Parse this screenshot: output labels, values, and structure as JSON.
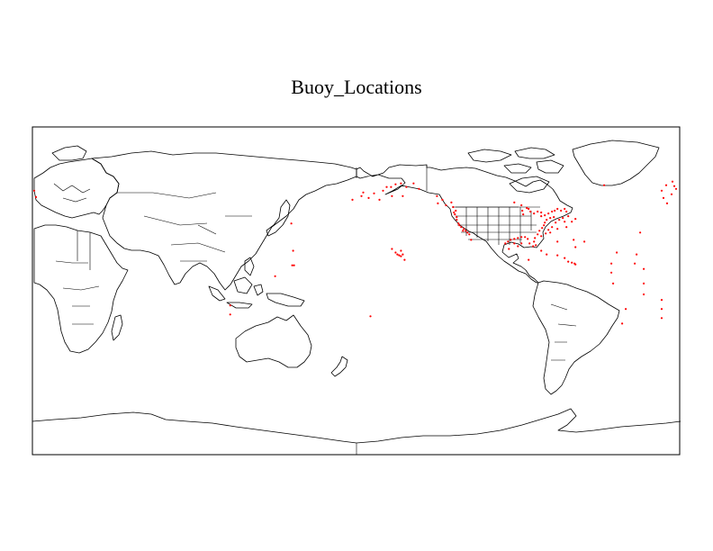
{
  "title": "Buoy_Locations",
  "map": {
    "projection": "cylindrical-equidistant",
    "center_longitude": 180,
    "lon_range": [
      0,
      360
    ],
    "lat_range": [
      -90,
      90
    ],
    "outline_color": "#000000",
    "marker_color": "#ff0000",
    "marker_shape": "dot"
  },
  "buoys": [
    {
      "lon": 356.0,
      "lat": 60.0
    },
    {
      "lon": 357.0,
      "lat": 57.5
    },
    {
      "lon": 358.0,
      "lat": 56.0
    },
    {
      "lon": 1.0,
      "lat": 55.0
    },
    {
      "lon": 2.0,
      "lat": 51.5
    },
    {
      "lon": 355.5,
      "lat": 53.0
    },
    {
      "lon": 352.5,
      "lat": 58.0
    },
    {
      "lon": 350.0,
      "lat": 55.0
    },
    {
      "lon": 351.0,
      "lat": 51.0
    },
    {
      "lon": 353.0,
      "lat": 48.0
    },
    {
      "lon": 338.0,
      "lat": 32.0
    },
    {
      "lon": 336.0,
      "lat": 20.0
    },
    {
      "lon": 335.0,
      "lat": 15.0
    },
    {
      "lon": 325.0,
      "lat": 21.0
    },
    {
      "lon": 322.0,
      "lat": 15.0
    },
    {
      "lon": 322.0,
      "lat": 10.0
    },
    {
      "lon": 323.0,
      "lat": 4.0
    },
    {
      "lon": 340.0,
      "lat": 12.0
    },
    {
      "lon": 340.0,
      "lat": 4.0
    },
    {
      "lon": 340.0,
      "lat": -2.0
    },
    {
      "lon": 350.0,
      "lat": -5.0
    },
    {
      "lon": 350.0,
      "lat": -10.0
    },
    {
      "lon": 350.0,
      "lat": -15.0
    },
    {
      "lon": 330.0,
      "lat": -10.0
    },
    {
      "lon": 328.0,
      "lat": -18.0
    },
    {
      "lon": 318.0,
      "lat": 58.0
    },
    {
      "lon": 110.0,
      "lat": -8.0
    },
    {
      "lon": 110.0,
      "lat": -13.0
    },
    {
      "lon": 144.0,
      "lat": 37.0
    },
    {
      "lon": 145.0,
      "lat": 22.0
    },
    {
      "lon": 144.5,
      "lat": 14.0
    },
    {
      "lon": 145.5,
      "lat": 14.0
    },
    {
      "lon": 135.0,
      "lat": 8.0
    },
    {
      "lon": 188.0,
      "lat": -14.0
    },
    {
      "lon": 178.0,
      "lat": 50.0
    },
    {
      "lon": 183.0,
      "lat": 52.0
    },
    {
      "lon": 184.0,
      "lat": 54.0
    },
    {
      "lon": 187.0,
      "lat": 51.0
    },
    {
      "lon": 190.0,
      "lat": 53.5
    },
    {
      "lon": 195.0,
      "lat": 55.0
    },
    {
      "lon": 197.0,
      "lat": 57.0
    },
    {
      "lon": 199.5,
      "lat": 57.0
    },
    {
      "lon": 202.0,
      "lat": 58.5
    },
    {
      "lon": 205.0,
      "lat": 59.0
    },
    {
      "lon": 208.0,
      "lat": 57.0
    },
    {
      "lon": 212.0,
      "lat": 59.0
    },
    {
      "lon": 215.0,
      "lat": 56.0
    },
    {
      "lon": 206.0,
      "lat": 52.0
    },
    {
      "lon": 200.0,
      "lat": 52.0
    },
    {
      "lon": 193.0,
      "lat": 50.0
    },
    {
      "lon": 200.0,
      "lat": 23.0
    },
    {
      "lon": 202.0,
      "lat": 21.0
    },
    {
      "lon": 203.0,
      "lat": 20.0
    },
    {
      "lon": 204.0,
      "lat": 19.5
    },
    {
      "lon": 205.0,
      "lat": 19.0
    },
    {
      "lon": 206.0,
      "lat": 20.0
    },
    {
      "lon": 207.0,
      "lat": 17.0
    },
    {
      "lon": 205.0,
      "lat": 22.0
    },
    {
      "lon": 225.0,
      "lat": 52.0
    },
    {
      "lon": 225.5,
      "lat": 48.0
    },
    {
      "lon": 228.0,
      "lat": 50.0
    },
    {
      "lon": 230.0,
      "lat": 47.0
    },
    {
      "lon": 233.0,
      "lat": 48.5
    },
    {
      "lon": 234.0,
      "lat": 46.0
    },
    {
      "lon": 235.5,
      "lat": 44.0
    },
    {
      "lon": 235.0,
      "lat": 42.0
    },
    {
      "lon": 236.0,
      "lat": 39.0
    },
    {
      "lon": 237.0,
      "lat": 37.0
    },
    {
      "lon": 238.5,
      "lat": 35.0
    },
    {
      "lon": 240.0,
      "lat": 34.0
    },
    {
      "lon": 241.0,
      "lat": 33.0
    },
    {
      "lon": 242.0,
      "lat": 32.0
    },
    {
      "lon": 243.0,
      "lat": 31.0
    },
    {
      "lon": 236.0,
      "lat": 40.5
    },
    {
      "lon": 234.5,
      "lat": 43.0
    },
    {
      "lon": 237.5,
      "lat": 36.0
    },
    {
      "lon": 239.5,
      "lat": 33.0
    },
    {
      "lon": 244.0,
      "lat": 28.0
    },
    {
      "lon": 268.0,
      "lat": 48.5
    },
    {
      "lon": 272.0,
      "lat": 47.0
    },
    {
      "lon": 275.0,
      "lat": 45.5
    },
    {
      "lon": 272.5,
      "lat": 44.0
    },
    {
      "lon": 273.0,
      "lat": 42.0
    },
    {
      "lon": 277.0,
      "lat": 43.5
    },
    {
      "lon": 279.0,
      "lat": 42.5
    },
    {
      "lon": 281.0,
      "lat": 43.5
    },
    {
      "lon": 283.0,
      "lat": 43.0
    },
    {
      "lon": 276.0,
      "lat": 45.0
    },
    {
      "lon": 283.0,
      "lat": 41.0
    },
    {
      "lon": 285.0,
      "lat": 41.5
    },
    {
      "lon": 287.0,
      "lat": 42.5
    },
    {
      "lon": 289.0,
      "lat": 43.5
    },
    {
      "lon": 290.5,
      "lat": 44.0
    },
    {
      "lon": 292.0,
      "lat": 45.0
    },
    {
      "lon": 294.0,
      "lat": 44.0
    },
    {
      "lon": 296.0,
      "lat": 45.0
    },
    {
      "lon": 297.0,
      "lat": 43.5
    },
    {
      "lon": 290.0,
      "lat": 40.5
    },
    {
      "lon": 288.0,
      "lat": 40.0
    },
    {
      "lon": 286.0,
      "lat": 39.0
    },
    {
      "lon": 285.0,
      "lat": 37.5
    },
    {
      "lon": 284.5,
      "lat": 36.0
    },
    {
      "lon": 283.5,
      "lat": 34.5
    },
    {
      "lon": 282.0,
      "lat": 33.0
    },
    {
      "lon": 281.0,
      "lat": 31.0
    },
    {
      "lon": 279.5,
      "lat": 29.0
    },
    {
      "lon": 279.0,
      "lat": 27.0
    },
    {
      "lon": 280.0,
      "lat": 25.0
    },
    {
      "lon": 278.5,
      "lat": 24.5
    },
    {
      "lon": 276.5,
      "lat": 26.0
    },
    {
      "lon": 275.5,
      "lat": 28.5
    },
    {
      "lon": 274.0,
      "lat": 29.5
    },
    {
      "lon": 272.0,
      "lat": 29.5
    },
    {
      "lon": 270.0,
      "lat": 29.0
    },
    {
      "lon": 268.0,
      "lat": 28.5
    },
    {
      "lon": 266.0,
      "lat": 28.0
    },
    {
      "lon": 264.5,
      "lat": 27.0
    },
    {
      "lon": 263.0,
      "lat": 26.0
    },
    {
      "lon": 268.0,
      "lat": 26.0
    },
    {
      "lon": 272.0,
      "lat": 26.0
    },
    {
      "lon": 270.0,
      "lat": 24.5
    },
    {
      "lon": 265.0,
      "lat": 23.0
    },
    {
      "lon": 283.0,
      "lat": 30.0
    },
    {
      "lon": 285.5,
      "lat": 31.5
    },
    {
      "lon": 287.0,
      "lat": 33.5
    },
    {
      "lon": 289.0,
      "lat": 35.0
    },
    {
      "lon": 291.0,
      "lat": 37.5
    },
    {
      "lon": 293.0,
      "lat": 39.0
    },
    {
      "lon": 295.0,
      "lat": 40.0
    },
    {
      "lon": 298.0,
      "lat": 41.0
    },
    {
      "lon": 296.0,
      "lat": 38.0
    },
    {
      "lon": 292.0,
      "lat": 34.0
    },
    {
      "lon": 288.0,
      "lat": 32.0
    },
    {
      "lon": 300.0,
      "lat": 38.0
    },
    {
      "lon": 302.0,
      "lat": 39.5
    },
    {
      "lon": 297.0,
      "lat": 35.0
    },
    {
      "lon": 283.0,
      "lat": 22.0
    },
    {
      "lon": 286.0,
      "lat": 20.0
    },
    {
      "lon": 292.0,
      "lat": 19.5
    },
    {
      "lon": 296.0,
      "lat": 18.0
    },
    {
      "lon": 298.0,
      "lat": 16.0
    },
    {
      "lon": 300.0,
      "lat": 15.5
    },
    {
      "lon": 301.5,
      "lat": 15.0
    },
    {
      "lon": 302.0,
      "lat": 14.5
    },
    {
      "lon": 276.0,
      "lat": 17.0
    },
    {
      "lon": 302.0,
      "lat": 24.0
    },
    {
      "lon": 307.0,
      "lat": 27.0
    },
    {
      "lon": 301.0,
      "lat": 28.0
    },
    {
      "lon": 292.0,
      "lat": 27.0
    }
  ]
}
